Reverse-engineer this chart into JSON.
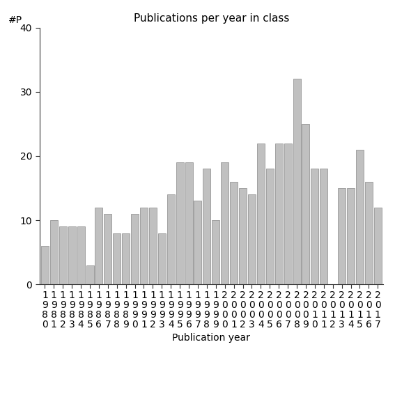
{
  "title": "Publications per year in class",
  "xlabel": "Publication year",
  "ylabel": "#P",
  "years": [
    1980,
    1981,
    1982,
    1983,
    1984,
    1985,
    1986,
    1987,
    1988,
    1989,
    1990,
    1991,
    1992,
    1993,
    1994,
    1995,
    1996,
    1997,
    1998,
    1999,
    2000,
    2001,
    2002,
    2003,
    2004,
    2005,
    2006,
    2007,
    2008,
    2009,
    2010,
    2011,
    2012,
    2013,
    2014,
    2015,
    2016,
    2017
  ],
  "values": [
    6,
    10,
    9,
    9,
    9,
    3,
    12,
    11,
    8,
    8,
    11,
    12,
    12,
    8,
    14,
    19,
    19,
    13,
    18,
    10,
    19,
    16,
    15,
    14,
    22,
    18,
    22,
    22,
    32,
    25,
    18,
    18,
    0,
    15,
    15,
    21,
    16,
    12
  ],
  "bar_color": "#c0c0c0",
  "bar_edge_color": "#888888",
  "ylim": [
    0,
    40
  ],
  "yticks": [
    0,
    10,
    20,
    30,
    40
  ],
  "background_color": "#ffffff",
  "title_fontsize": 11,
  "label_fontsize": 10,
  "tick_fontsize": 10
}
